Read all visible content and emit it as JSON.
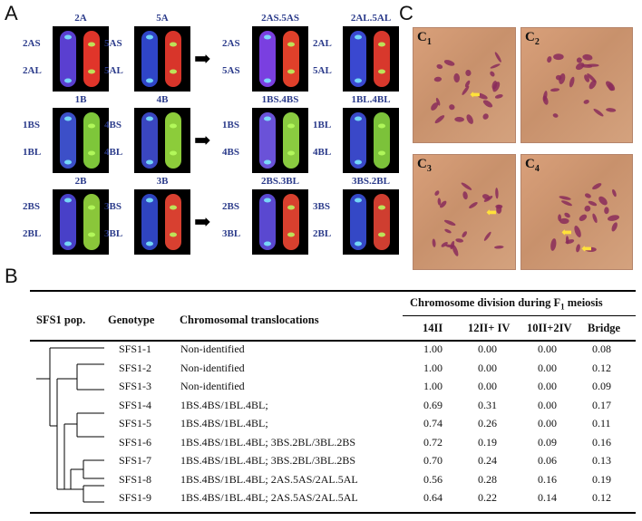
{
  "panel_labels": {
    "a": "A",
    "b": "B",
    "c": "C"
  },
  "fish_groups": [
    {
      "title": "2A",
      "top": "2AS",
      "bottom": "2AL"
    },
    {
      "title": "5A",
      "top": "5AS",
      "bottom": "5AL"
    },
    {
      "title": "2AS.5AS",
      "top": "2AS",
      "bottom": "5AS"
    },
    {
      "title": "2AL.5AL",
      "top": "2AL",
      "bottom": "5AL"
    },
    {
      "title": "1B",
      "top": "1BS",
      "bottom": "1BL"
    },
    {
      "title": "4B",
      "top": "4BS",
      "bottom": "4BL"
    },
    {
      "title": "1BS.4BS",
      "top": "1BS",
      "bottom": "4BS"
    },
    {
      "title": "1BL.4BL",
      "top": "1BL",
      "bottom": "4BL"
    },
    {
      "title": "2B",
      "top": "2BS",
      "bottom": "2BL"
    },
    {
      "title": "3B",
      "top": "3BS",
      "bottom": "3BL"
    },
    {
      "title": "2BS.3BL",
      "top": "2BS",
      "bottom": "3BL"
    },
    {
      "title": "3BS.2BL",
      "top": "3BS",
      "bottom": "2BL"
    }
  ],
  "micro_panels": [
    {
      "label": "C",
      "sub": "1"
    },
    {
      "label": "C",
      "sub": "2"
    },
    {
      "label": "C",
      "sub": "3"
    },
    {
      "label": "C",
      "sub": "4"
    }
  ],
  "table": {
    "col_pop": "SFS1 pop.",
    "col_genotype": "Genotype",
    "col_transloc": "Chromosomal translocations",
    "group_header_pre": "Chromosome  division during F",
    "group_header_sub": "1",
    "group_header_post": " meiosis",
    "sub_headers": [
      "14II",
      "12II+ IV",
      "10II+2IV",
      "Bridge"
    ],
    "rows": [
      {
        "genotype": "SFS1-1",
        "transloc": "Non-identified",
        "v": [
          "1.00",
          "0.00",
          "0.00",
          "0.08"
        ]
      },
      {
        "genotype": "SFS1-2",
        "transloc": "Non-identified",
        "v": [
          "1.00",
          "0.00",
          "0.00",
          "0.12"
        ]
      },
      {
        "genotype": "SFS1-3",
        "transloc": "Non-identified",
        "v": [
          "1.00",
          "0.00",
          "0.00",
          "0.09"
        ]
      },
      {
        "genotype": "SFS1-4",
        "transloc": "1BS.4BS/1BL.4BL;",
        "v": [
          "0.69",
          "0.31",
          "0.00",
          "0.17"
        ]
      },
      {
        "genotype": "SFS1-5",
        "transloc": "1BS.4BS/1BL.4BL;",
        "v": [
          "0.74",
          "0.26",
          "0.00",
          "0.11"
        ]
      },
      {
        "genotype": "SFS1-6",
        "transloc": "1BS.4BS/1BL.4BL;  3BS.2BL/3BL.2BS",
        "v": [
          "0.72",
          "0.19",
          "0.09",
          "0.16"
        ]
      },
      {
        "genotype": "SFS1-7",
        "transloc": "1BS.4BS/1BL.4BL;  3BS.2BL/3BL.2BS",
        "v": [
          "0.70",
          "0.24",
          "0.06",
          "0.13"
        ]
      },
      {
        "genotype": "SFS1-8",
        "transloc": "1BS.4BS/1BL.4BL; 2AS.5AS/2AL.5AL",
        "v": [
          "0.56",
          "0.28",
          "0.16",
          "0.19"
        ]
      },
      {
        "genotype": "SFS1-9",
        "transloc": "1BS.4BS/1BL.4BL; 2AS.5AS/2AL.5AL",
        "v": [
          "0.64",
          "0.22",
          "0.14",
          "0.12"
        ]
      }
    ]
  }
}
